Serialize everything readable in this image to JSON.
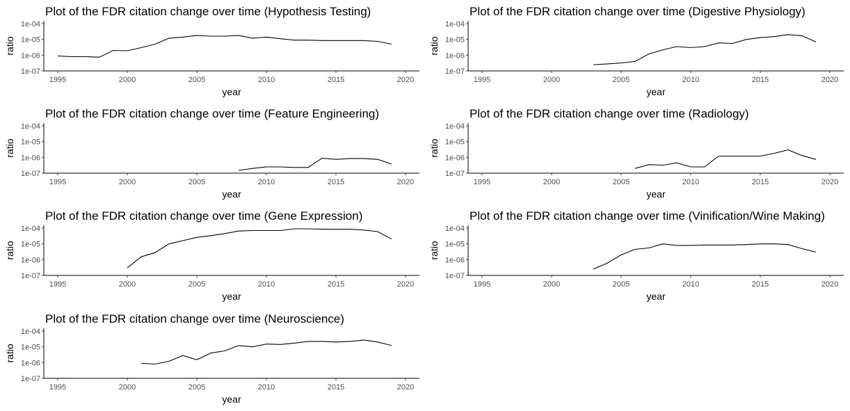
{
  "chart_data": [
    {
      "type": "line",
      "title": "Plot of the FDR citation change over time (Hypothesis Testing)",
      "xlabel": "year",
      "ylabel": "ratio",
      "xlim": [
        1994,
        2021
      ],
      "xticks": [
        1995,
        2000,
        2005,
        2010,
        2015,
        2020
      ],
      "ylog": true,
      "ylim": [
        1e-07,
        0.00015
      ],
      "yticks": [
        1e-07,
        1e-06,
        1e-05,
        0.0001
      ],
      "ytick_labels": [
        "1e-07",
        "1e-06",
        "1e-05",
        "1e-04"
      ],
      "grid": false,
      "x": [
        1995,
        1996,
        1997,
        1998,
        1999,
        2000,
        2001,
        2002,
        2003,
        2004,
        2005,
        2006,
        2007,
        2008,
        2009,
        2010,
        2011,
        2012,
        2013,
        2014,
        2015,
        2016,
        2017,
        2018,
        2019
      ],
      "y": [
        9e-07,
        8e-07,
        8e-07,
        7.5e-07,
        2e-06,
        1.9e-06,
        3e-06,
        5e-06,
        1.2e-05,
        1.4e-05,
        1.8e-05,
        1.6e-05,
        1.6e-05,
        1.8e-05,
        1.2e-05,
        1.4e-05,
        1.1e-05,
        9e-06,
        9e-06,
        8.5e-06,
        8.5e-06,
        8.5e-06,
        8.5e-06,
        7.5e-06,
        5e-06
      ]
    },
    {
      "type": "line",
      "title": "Plot of the FDR citation change over time (Digestive Physiology)",
      "xlabel": "year",
      "ylabel": "ratio",
      "xlim": [
        1994,
        2021
      ],
      "xticks": [
        1995,
        2000,
        2005,
        2010,
        2015,
        2020
      ],
      "ylog": true,
      "ylim": [
        1e-07,
        0.00015
      ],
      "yticks": [
        1e-07,
        1e-06,
        1e-05,
        0.0001
      ],
      "ytick_labels": [
        "1e-07",
        "1e-06",
        "1e-05",
        "1e-04"
      ],
      "grid": false,
      "x": [
        2003,
        2004,
        2005,
        2006,
        2007,
        2008,
        2009,
        2010,
        2011,
        2012,
        2013,
        2014,
        2015,
        2016,
        2017,
        2018,
        2019
      ],
      "y": [
        2.5e-07,
        2.8e-07,
        3.2e-07,
        4e-07,
        1.2e-06,
        2.2e-06,
        3.5e-06,
        3e-06,
        3.5e-06,
        6e-06,
        5.5e-06,
        1e-05,
        1.3e-05,
        1.5e-05,
        2e-05,
        1.7e-05,
        7e-06
      ]
    },
    {
      "type": "line",
      "title": "Plot of the FDR citation change over time (Feature Engineering)",
      "xlabel": "year",
      "ylabel": "ratio",
      "xlim": [
        1994,
        2021
      ],
      "xticks": [
        1995,
        2000,
        2005,
        2010,
        2015,
        2020
      ],
      "ylog": true,
      "ylim": [
        1e-07,
        0.00015
      ],
      "yticks": [
        1e-07,
        1e-06,
        1e-05,
        0.0001
      ],
      "ytick_labels": [
        "1e-07",
        "1e-06",
        "1e-05",
        "1e-04"
      ],
      "grid": false,
      "x": [
        2008,
        2009,
        2010,
        2011,
        2012,
        2013,
        2014,
        2015,
        2016,
        2017,
        2018,
        2019
      ],
      "y": [
        1.5e-07,
        2e-07,
        2.5e-07,
        2.5e-07,
        2.3e-07,
        2.3e-07,
        9e-07,
        7.5e-07,
        8.5e-07,
        8.5e-07,
        7.5e-07,
        3.8e-07
      ]
    },
    {
      "type": "line",
      "title": "Plot of the FDR citation change over time (Radiology)",
      "xlabel": "year",
      "ylabel": "ratio",
      "xlim": [
        1994,
        2021
      ],
      "xticks": [
        1995,
        2000,
        2005,
        2010,
        2015,
        2020
      ],
      "ylog": true,
      "ylim": [
        1e-07,
        0.00015
      ],
      "yticks": [
        1e-07,
        1e-06,
        1e-05,
        0.0001
      ],
      "ytick_labels": [
        "1e-07",
        "1e-06",
        "1e-05",
        "1e-04"
      ],
      "grid": false,
      "x": [
        2006,
        2007,
        2008,
        2009,
        2010,
        2011,
        2012,
        2013,
        2014,
        2015,
        2016,
        2017,
        2018,
        2019
      ],
      "y": [
        2e-07,
        3.5e-07,
        3.2e-07,
        4.5e-07,
        2.5e-07,
        2.5e-07,
        1.2e-06,
        1.2e-06,
        1.2e-06,
        1.2e-06,
        1.8e-06,
        3e-06,
        1.3e-06,
        7.5e-07
      ]
    },
    {
      "type": "line",
      "title": "Plot of the FDR citation change over time (Gene Expression)",
      "xlabel": "year",
      "ylabel": "ratio",
      "xlim": [
        1994,
        2021
      ],
      "xticks": [
        1995,
        2000,
        2005,
        2010,
        2015,
        2020
      ],
      "ylog": true,
      "ylim": [
        1e-07,
        0.00015
      ],
      "yticks": [
        1e-07,
        1e-06,
        1e-05,
        0.0001
      ],
      "ytick_labels": [
        "1e-07",
        "1e-06",
        "1e-05",
        "1e-04"
      ],
      "grid": false,
      "x": [
        2000,
        2001,
        2002,
        2003,
        2004,
        2005,
        2006,
        2007,
        2008,
        2009,
        2010,
        2011,
        2012,
        2013,
        2014,
        2015,
        2016,
        2017,
        2018,
        2019
      ],
      "y": [
        3e-07,
        1.5e-06,
        2.8e-06,
        1e-05,
        1.6e-05,
        2.6e-05,
        3.3e-05,
        4.5e-05,
        6.5e-05,
        7e-05,
        7e-05,
        7e-05,
        9e-05,
        9e-05,
        8.5e-05,
        8.5e-05,
        8.5e-05,
        7.5e-05,
        6e-05,
        2e-05
      ]
    },
    {
      "type": "line",
      "title": "Plot of the FDR citation change over time (Vinification/Wine Making)",
      "xlabel": "year",
      "ylabel": "ratio",
      "xlim": [
        1994,
        2021
      ],
      "xticks": [
        1995,
        2000,
        2005,
        2010,
        2015,
        2020
      ],
      "ylog": true,
      "ylim": [
        1e-07,
        0.00015
      ],
      "yticks": [
        1e-07,
        1e-06,
        1e-05,
        0.0001
      ],
      "ytick_labels": [
        "1e-07",
        "1e-06",
        "1e-05",
        "1e-04"
      ],
      "grid": false,
      "x": [
        2003,
        2004,
        2005,
        2006,
        2007,
        2008,
        2009,
        2010,
        2011,
        2012,
        2013,
        2014,
        2015,
        2016,
        2017,
        2018,
        2019
      ],
      "y": [
        2.5e-07,
        6e-07,
        2e-06,
        4.5e-06,
        5.5e-06,
        1e-05,
        8e-06,
        8e-06,
        8.5e-06,
        8.5e-06,
        8.5e-06,
        9e-06,
        1e-05,
        1e-05,
        9e-06,
        5e-06,
        3e-06
      ]
    },
    {
      "type": "line",
      "title": "Plot of the FDR citation change over time (Neuroscience)",
      "xlabel": "year",
      "ylabel": "ratio",
      "xlim": [
        1994,
        2021
      ],
      "xticks": [
        1995,
        2000,
        2005,
        2010,
        2015,
        2020
      ],
      "ylog": true,
      "ylim": [
        1e-07,
        0.00015
      ],
      "yticks": [
        1e-07,
        1e-06,
        1e-05,
        0.0001
      ],
      "ytick_labels": [
        "1e-07",
        "1e-06",
        "1e-05",
        "1e-04"
      ],
      "grid": false,
      "x": [
        2001,
        2002,
        2003,
        2004,
        2005,
        2006,
        2007,
        2008,
        2009,
        2010,
        2011,
        2012,
        2013,
        2014,
        2015,
        2016,
        2017,
        2018,
        2019
      ],
      "y": [
        9e-07,
        8e-07,
        1.2e-06,
        2.8e-06,
        1.5e-06,
        4e-06,
        5.5e-06,
        1.2e-05,
        1e-05,
        1.5e-05,
        1.4e-05,
        1.7e-05,
        2.2e-05,
        2.2e-05,
        2e-05,
        2.2e-05,
        2.7e-05,
        2e-05,
        1.2e-05
      ]
    }
  ]
}
